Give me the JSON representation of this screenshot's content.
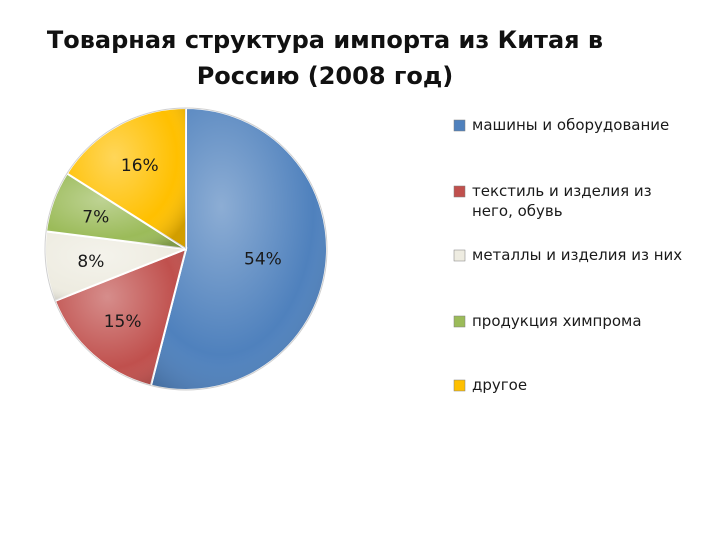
{
  "chart_data": {
    "type": "pie",
    "title_lines": [
      "Товарная структура импорта из Китая в",
      "Россию (2008 год)"
    ],
    "slices": [
      {
        "label": "машины и оборудование",
        "value": 54,
        "value_label": "54%",
        "color": "#4F81BD"
      },
      {
        "label": "текстиль и изделия из него, обувь",
        "legend_lines": [
          "текстиль и изделия из",
          "него, обувь"
        ],
        "value": 15,
        "value_label": "15%",
        "color": "#C0504D"
      },
      {
        "label": "металлы и изделия из них",
        "value": 8,
        "value_label": "8%",
        "color": "#EEECE1"
      },
      {
        "label": "продукция химпрома",
        "value": 7,
        "value_label": "7%",
        "color": "#9BBB59"
      },
      {
        "label": "другое",
        "value": 16,
        "value_label": "16%",
        "color": "#FFC000"
      }
    ],
    "legend_position": "right"
  }
}
